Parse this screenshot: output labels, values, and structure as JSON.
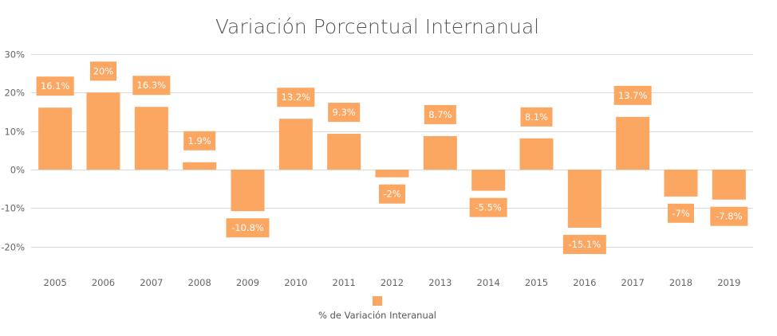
{
  "chart_data": {
    "type": "bar",
    "title": "Variación Porcentual Internanual",
    "categories": [
      "2005",
      "2006",
      "2007",
      "2008",
      "2009",
      "2010",
      "2011",
      "2012",
      "2013",
      "2014",
      "2015",
      "2016",
      "2017",
      "2018",
      "2019"
    ],
    "series": [
      {
        "name": "% de Variación Interanual",
        "values": [
          16.1,
          20,
          16.3,
          1.9,
          -10.8,
          13.2,
          9.3,
          -2,
          8.7,
          -5.5,
          8.1,
          -15.1,
          13.7,
          -7,
          -7.8
        ],
        "labels": [
          "16.1%",
          "20%",
          "16.3%",
          "1.9%",
          "-10.8%",
          "13.2%",
          "9.3%",
          "-2%",
          "8.7%",
          "-5.5%",
          "8.1%",
          "-15.1%",
          "13.7%",
          "-7%",
          "-7.8%"
        ]
      }
    ],
    "yticks": [
      30,
      20,
      10,
      0,
      -10,
      -20
    ],
    "ytick_labels": [
      "30%",
      "20%",
      "10%",
      "0%",
      "-10%",
      "-20%"
    ],
    "ylim": [
      -26,
      30
    ],
    "xlabel": "",
    "ylabel": "",
    "grid": true,
    "legend_position": "bottom-center",
    "colors": {
      "bar": "#FBA661",
      "grid": "#d9d9d9",
      "axis_text": "#666666",
      "title": "#555555",
      "label_text": "#ffffff"
    }
  }
}
